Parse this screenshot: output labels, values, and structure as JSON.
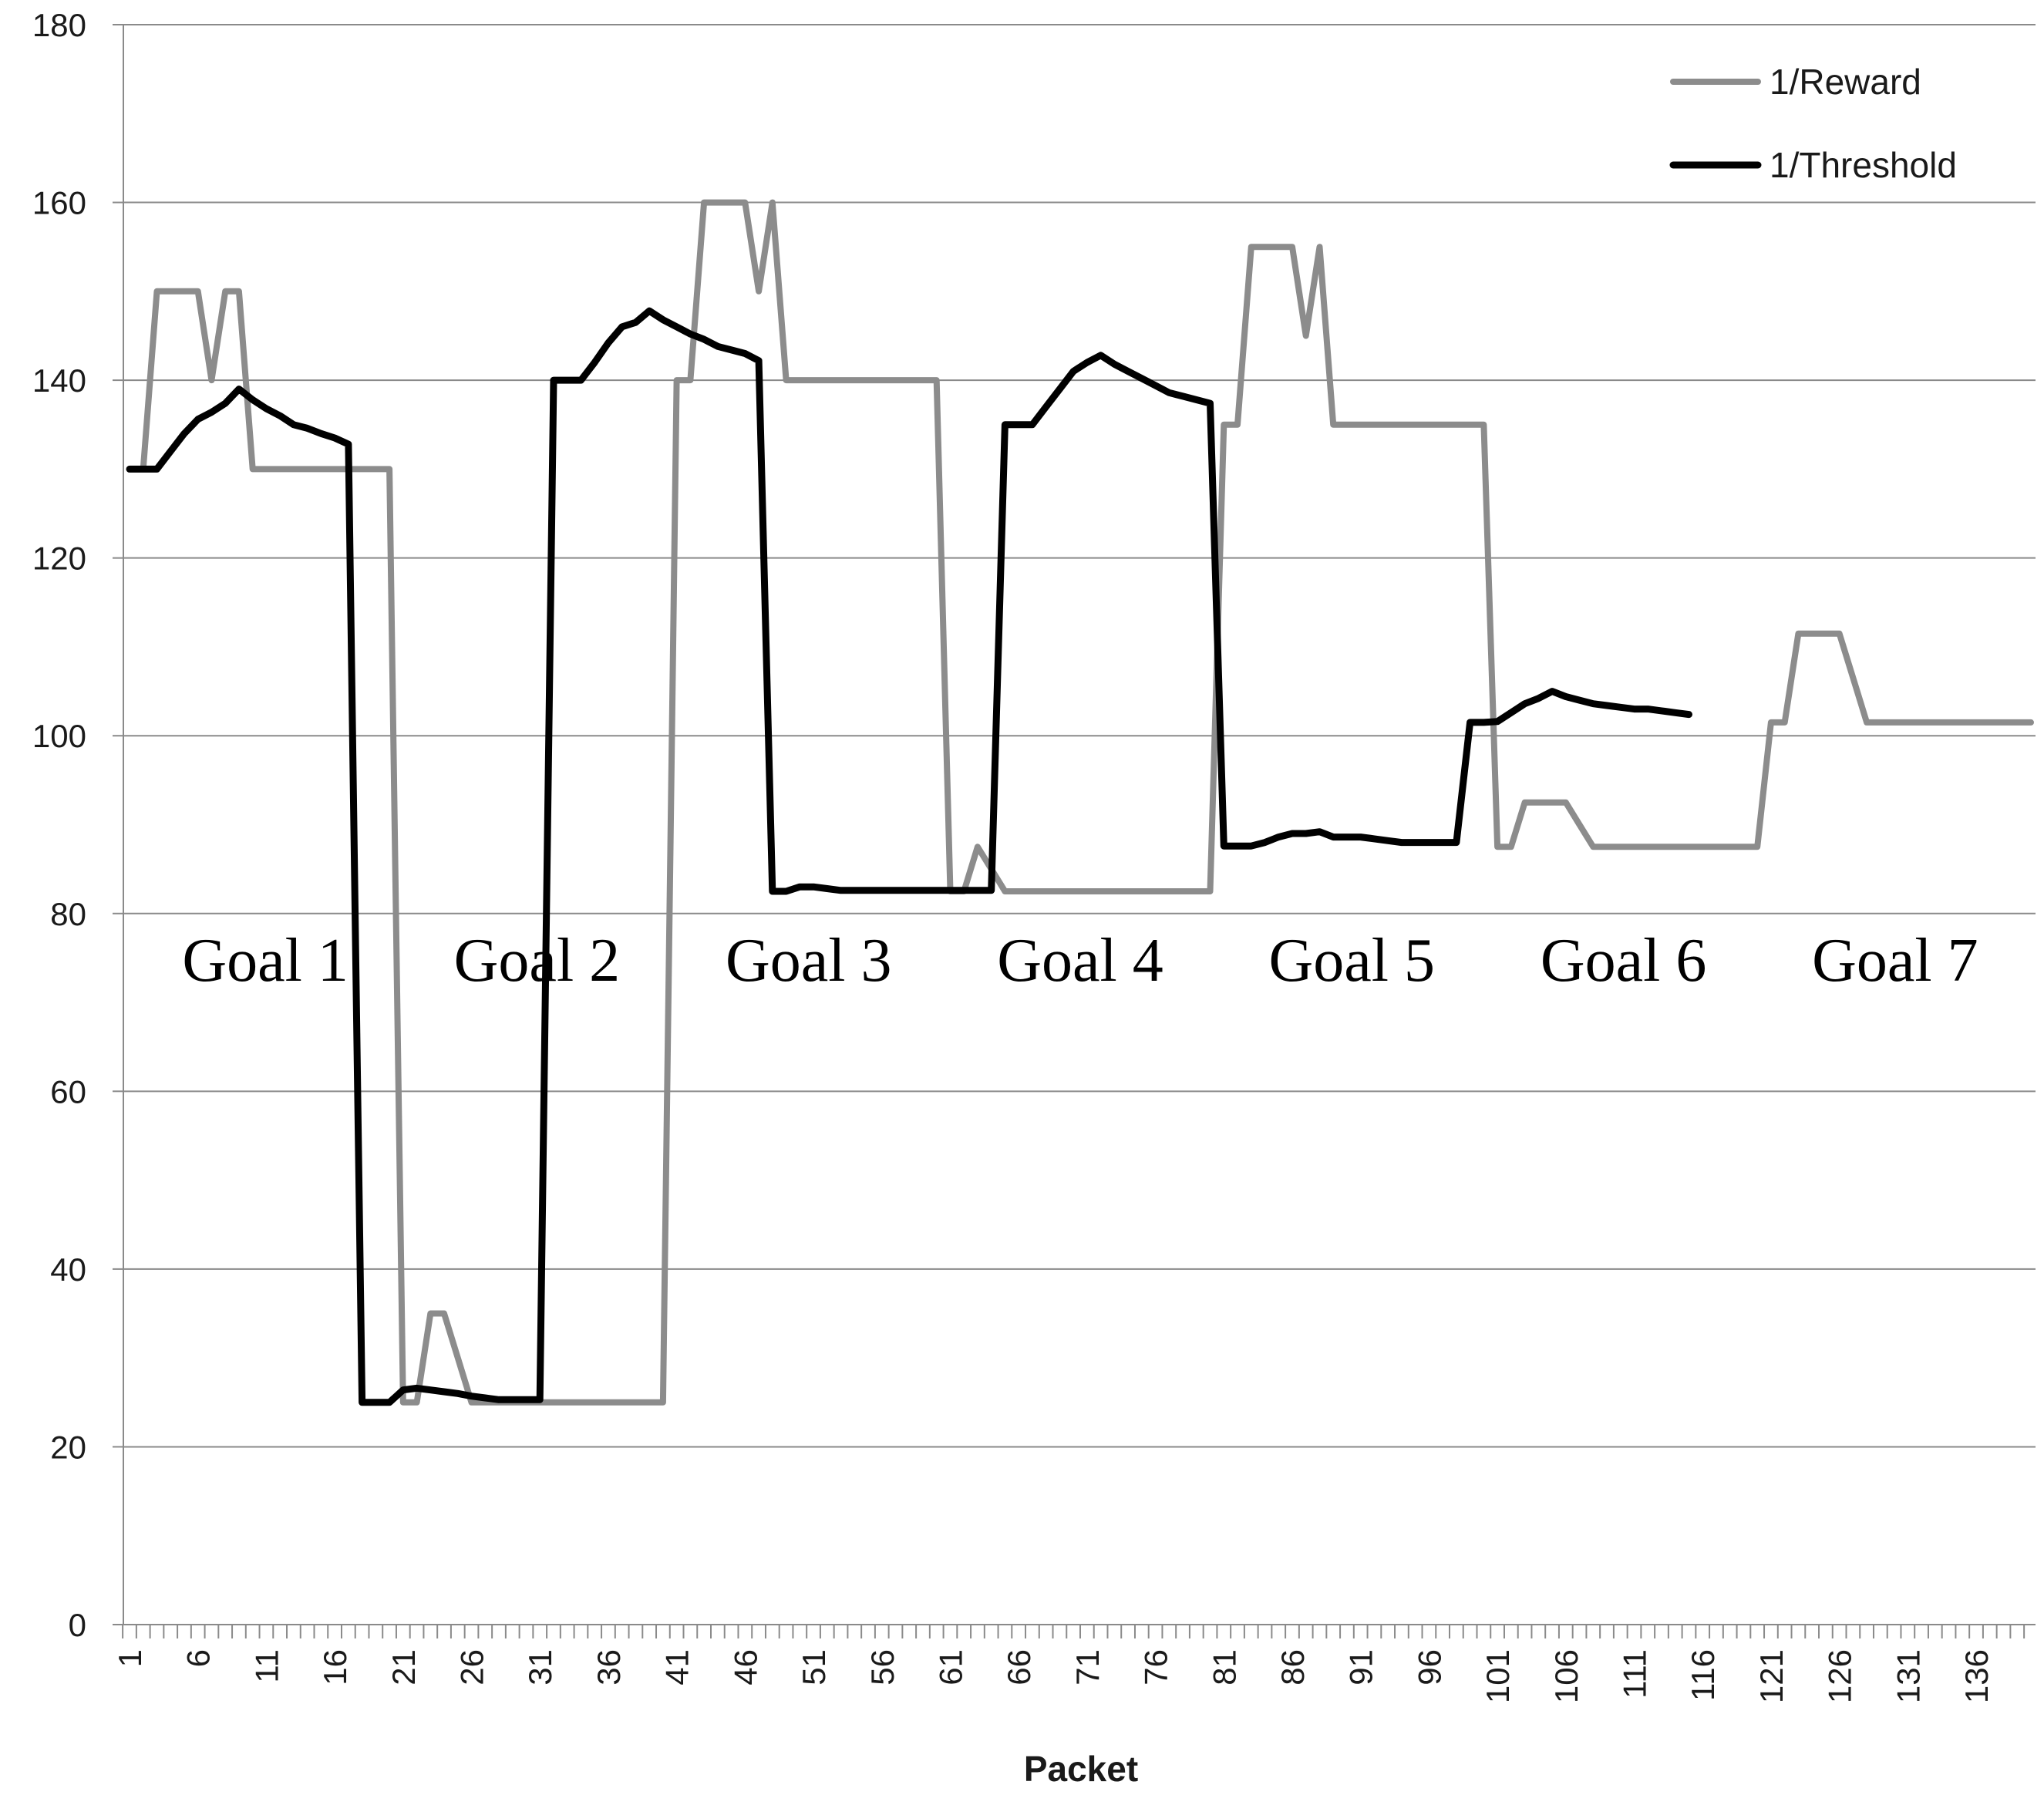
{
  "chart_data": {
    "type": "line",
    "title": "",
    "xlabel": "Packet",
    "ylabel": "",
    "ylim": [
      0,
      180
    ],
    "yticks": [
      0,
      20,
      40,
      60,
      80,
      100,
      120,
      140,
      160,
      180
    ],
    "xlim": [
      1,
      140
    ],
    "xtick_labels": [
      "1",
      "6",
      "11",
      "16",
      "21",
      "26",
      "31",
      "36",
      "41",
      "46",
      "51",
      "56",
      "61",
      "66",
      "71",
      "76",
      "81",
      "86",
      "91",
      "96",
      "101",
      "106",
      "111",
      "116",
      "121",
      "126",
      "131",
      "136"
    ],
    "grid": "horizontal",
    "legend_position": "top-right",
    "annotations": [
      "Goal 1",
      "Goal 2",
      "Goal 3",
      "Goal 4",
      "Goal 5",
      "Goal 6",
      "Goal 7"
    ],
    "series": [
      {
        "name": "1/Reward",
        "color": "#8c8c8c",
        "points": [
          [
            1,
            130
          ],
          [
            2,
            130
          ],
          [
            3,
            150
          ],
          [
            4,
            150
          ],
          [
            5,
            150
          ],
          [
            6,
            150
          ],
          [
            7,
            140
          ],
          [
            8,
            150
          ],
          [
            9,
            150
          ],
          [
            10,
            130
          ],
          [
            20,
            130
          ],
          [
            21,
            25
          ],
          [
            22,
            25
          ],
          [
            23,
            35
          ],
          [
            24,
            35
          ],
          [
            25,
            30
          ],
          [
            26,
            25
          ],
          [
            40,
            25
          ],
          [
            41,
            140
          ],
          [
            42,
            140
          ],
          [
            43,
            160
          ],
          [
            44,
            160
          ],
          [
            45,
            160
          ],
          [
            46,
            160
          ],
          [
            47,
            150
          ],
          [
            48,
            160
          ],
          [
            49,
            140
          ],
          [
            60,
            140
          ],
          [
            61,
            82.5
          ],
          [
            62,
            82.5
          ],
          [
            63,
            87.5
          ],
          [
            64,
            85
          ],
          [
            65,
            82.5
          ],
          [
            80,
            82.5
          ],
          [
            81,
            135
          ],
          [
            82,
            135
          ],
          [
            83,
            155
          ],
          [
            84,
            155
          ],
          [
            85,
            155
          ],
          [
            86,
            155
          ],
          [
            87,
            145
          ],
          [
            88,
            155
          ],
          [
            89,
            135
          ],
          [
            100,
            135
          ],
          [
            101,
            87.5
          ],
          [
            102,
            87.5
          ],
          [
            103,
            92.5
          ],
          [
            104,
            92.5
          ],
          [
            105,
            92.5
          ],
          [
            106,
            92.5
          ],
          [
            107,
            90
          ],
          [
            108,
            87.5
          ],
          [
            120,
            87.5
          ],
          [
            121,
            101.5
          ],
          [
            122,
            101.5
          ],
          [
            123,
            111.5
          ],
          [
            124,
            111.5
          ],
          [
            125,
            111.5
          ],
          [
            126,
            111.5
          ],
          [
            127,
            106.5
          ],
          [
            128,
            101.5
          ],
          [
            140,
            101.5
          ]
        ]
      },
      {
        "name": "1/Threshold",
        "color": "#000000",
        "points": [
          [
            1,
            130
          ],
          [
            2,
            130
          ],
          [
            3,
            130
          ],
          [
            4,
            132
          ],
          [
            5,
            134
          ],
          [
            6,
            135.6
          ],
          [
            7,
            136.4
          ],
          [
            8,
            137.4
          ],
          [
            9,
            139
          ],
          [
            10,
            137.8
          ],
          [
            11,
            136.8
          ],
          [
            12,
            136
          ],
          [
            13,
            135
          ],
          [
            14,
            134.6
          ],
          [
            15,
            134
          ],
          [
            16,
            133.5
          ],
          [
            17,
            132.8
          ],
          [
            18,
            25
          ],
          [
            19,
            25
          ],
          [
            20,
            25
          ],
          [
            21,
            26.4
          ],
          [
            22,
            26.6
          ],
          [
            23,
            26.4
          ],
          [
            24,
            26.2
          ],
          [
            25,
            26
          ],
          [
            26,
            25.7
          ],
          [
            27,
            25.5
          ],
          [
            28,
            25.3
          ],
          [
            29,
            25.3
          ],
          [
            30,
            25.3
          ],
          [
            31,
            25.3
          ],
          [
            32,
            140
          ],
          [
            33,
            140
          ],
          [
            34,
            140
          ],
          [
            35,
            142
          ],
          [
            36,
            144.2
          ],
          [
            37,
            146
          ],
          [
            38,
            146.5
          ],
          [
            39,
            147.8
          ],
          [
            40,
            146.8
          ],
          [
            41,
            146
          ],
          [
            42,
            145.2
          ],
          [
            43,
            144.6
          ],
          [
            44,
            143.8
          ],
          [
            45,
            143.4
          ],
          [
            46,
            143
          ],
          [
            47,
            142.2
          ],
          [
            48,
            82.5
          ],
          [
            49,
            82.5
          ],
          [
            50,
            83
          ],
          [
            51,
            83
          ],
          [
            52,
            82.8
          ],
          [
            53,
            82.6
          ],
          [
            54,
            82.6
          ],
          [
            55,
            82.6
          ],
          [
            56,
            82.6
          ],
          [
            57,
            82.6
          ],
          [
            58,
            82.6
          ],
          [
            59,
            82.6
          ],
          [
            60,
            82.6
          ],
          [
            61,
            82.6
          ],
          [
            62,
            82.6
          ],
          [
            63,
            82.6
          ],
          [
            64,
            82.6
          ],
          [
            65,
            135
          ],
          [
            66,
            135
          ],
          [
            67,
            135
          ],
          [
            68,
            137
          ],
          [
            69,
            139
          ],
          [
            70,
            141
          ],
          [
            71,
            142
          ],
          [
            72,
            142.8
          ],
          [
            73,
            141.8
          ],
          [
            74,
            141
          ],
          [
            75,
            140.2
          ],
          [
            76,
            139.4
          ],
          [
            77,
            138.6
          ],
          [
            78,
            138.2
          ],
          [
            79,
            137.8
          ],
          [
            80,
            137.4
          ],
          [
            81,
            87.6
          ],
          [
            82,
            87.6
          ],
          [
            83,
            87.6
          ],
          [
            84,
            88
          ],
          [
            85,
            88.6
          ],
          [
            86,
            89
          ],
          [
            87,
            89
          ],
          [
            88,
            89.2
          ],
          [
            89,
            88.6
          ],
          [
            90,
            88.6
          ],
          [
            91,
            88.6
          ],
          [
            92,
            88.4
          ],
          [
            93,
            88.2
          ],
          [
            94,
            88
          ],
          [
            95,
            88
          ],
          [
            96,
            88
          ],
          [
            97,
            88
          ],
          [
            98,
            88
          ],
          [
            99,
            101.5
          ],
          [
            100,
            101.5
          ],
          [
            101,
            101.6
          ],
          [
            102,
            102.6
          ],
          [
            103,
            103.6
          ],
          [
            104,
            104.2
          ],
          [
            105,
            105
          ],
          [
            106,
            104.4
          ],
          [
            107,
            104
          ],
          [
            108,
            103.6
          ],
          [
            109,
            103.4
          ],
          [
            110,
            103.2
          ],
          [
            111,
            103
          ],
          [
            112,
            103
          ],
          [
            113,
            102.8
          ],
          [
            114,
            102.6
          ],
          [
            115,
            102.4
          ]
        ]
      }
    ]
  }
}
